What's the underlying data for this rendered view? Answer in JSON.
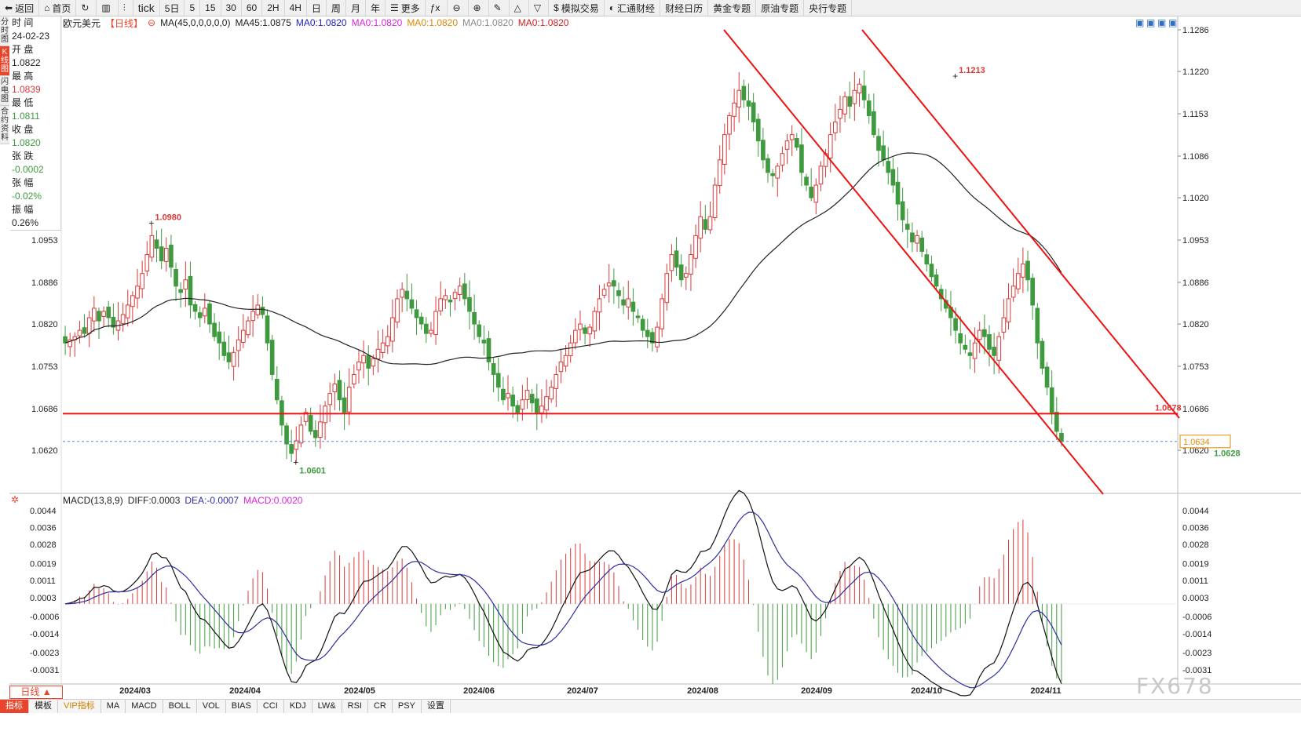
{
  "toolbar": [
    {
      "name": "back",
      "icon": "back-arrow-icon",
      "glyph": "⬅",
      "label": "返回"
    },
    {
      "name": "home",
      "icon": "home-icon",
      "glyph": "⌂",
      "label": "首页"
    },
    {
      "name": "refresh",
      "icon": "refresh-icon",
      "glyph": "↻",
      "label": ""
    },
    {
      "name": "bar-style",
      "icon": "bar-chart-icon",
      "glyph": "▥",
      "label": ""
    },
    {
      "name": "candle-style",
      "icon": "candlestick-icon",
      "glyph": "⫶",
      "label": ""
    },
    {
      "name": "tick",
      "icon": "",
      "glyph": "",
      "label": "tick"
    },
    {
      "name": "5day",
      "icon": "",
      "glyph": "",
      "label": "5日"
    },
    {
      "name": "m5",
      "icon": "",
      "glyph": "",
      "label": "5"
    },
    {
      "name": "m15",
      "icon": "",
      "glyph": "",
      "label": "15"
    },
    {
      "name": "m30",
      "icon": "",
      "glyph": "",
      "label": "30"
    },
    {
      "name": "m60",
      "icon": "",
      "glyph": "",
      "label": "60"
    },
    {
      "name": "h2",
      "icon": "",
      "glyph": "",
      "label": "2H"
    },
    {
      "name": "h4",
      "icon": "",
      "glyph": "",
      "label": "4H"
    },
    {
      "name": "day",
      "icon": "",
      "glyph": "",
      "label": "日"
    },
    {
      "name": "week",
      "icon": "",
      "glyph": "",
      "label": "周"
    },
    {
      "name": "month",
      "icon": "",
      "glyph": "",
      "label": "月"
    },
    {
      "name": "year",
      "icon": "",
      "glyph": "",
      "label": "年"
    },
    {
      "name": "more",
      "icon": "menu-icon",
      "glyph": "☰",
      "label": "更多"
    },
    {
      "name": "formula",
      "icon": "function-icon",
      "glyph": "ƒx",
      "label": ""
    },
    {
      "name": "zoom-out",
      "icon": "zoom-out-icon",
      "glyph": "⊖",
      "label": ""
    },
    {
      "name": "zoom-in",
      "icon": "zoom-in-icon",
      "glyph": "⊕",
      "label": ""
    },
    {
      "name": "draw",
      "icon": "pencil-icon",
      "glyph": "✎",
      "label": ""
    },
    {
      "name": "up",
      "icon": "triangle-up-icon",
      "glyph": "△",
      "label": ""
    },
    {
      "name": "down",
      "icon": "triangle-down-icon",
      "glyph": "▽",
      "label": ""
    },
    {
      "name": "sim-trade",
      "icon": "dollar-icon",
      "glyph": "$",
      "label": "模拟交易"
    },
    {
      "name": "huitong",
      "icon": "globe-icon",
      "glyph": "◐",
      "label": "汇通财经"
    },
    {
      "name": "calendar",
      "icon": "",
      "glyph": "",
      "label": "财经日历"
    },
    {
      "name": "gold",
      "icon": "",
      "glyph": "",
      "label": "黄金专题"
    },
    {
      "name": "oil",
      "icon": "",
      "glyph": "",
      "label": "原油专题"
    },
    {
      "name": "central-bank",
      "icon": "",
      "glyph": "",
      "label": "央行专题"
    }
  ],
  "side_tabs": [
    "分时图",
    "K线图",
    "闪电图",
    "合约资料"
  ],
  "info": {
    "time_label": "时 间",
    "time": "24-02-23",
    "open_label": "开 盘",
    "open": "1.0822",
    "high_label": "最 高",
    "high": "1.0839",
    "low_label": "最 低",
    "low": "1.0811",
    "close_label": "收 盘",
    "close": "1.0820",
    "change_label": "张 跌",
    "change": "-0.0002",
    "pct_label": "张 幅",
    "pct": "-0.02%",
    "amp_label": "振 幅",
    "amp": "0.26%"
  },
  "legend": {
    "symbol": "欧元美元",
    "period": "【日线】",
    "ma_label": "MA(45,0,0,0,0,0)",
    "ma45": "MA45:1.0875",
    "ma0a": "MA0:1.0820",
    "ma0b": "MA0:1.0820",
    "ma0c": "MA0:1.0820",
    "ma0d": "MA0:1.0820",
    "ma0e": "MA0:1.0820"
  },
  "macd_legend": {
    "label": "MACD(13,8,9)",
    "diff": "DIFF:0.0003",
    "dea": "DEA:-0.0007",
    "macd": "MACD:0.0020"
  },
  "colors": {
    "up": "#d93a3a",
    "down": "#3f9a3f",
    "ma": "#222222",
    "dea": "#2e2e9e",
    "trend": "#ee1111",
    "dotted": "#4a8bd6"
  },
  "chart_data": {
    "type": "candlestick",
    "title": "欧元美元 日线",
    "price_ticks": [
      1.1286,
      1.122,
      1.1153,
      1.1086,
      1.102,
      1.0953,
      1.0886,
      1.082,
      1.0753,
      1.0686,
      1.062
    ],
    "left_price_ticks": [
      1.0953,
      1.0886,
      1.082,
      1.0753,
      1.0686,
      1.062
    ],
    "ylim": [
      1.0553,
      1.1286
    ],
    "x_labels": [
      "2024/03",
      "2024/04",
      "2024/05",
      "2024/06",
      "2024/07",
      "2024/08",
      "2024/09",
      "2024/10",
      "2024/11"
    ],
    "annotations": [
      {
        "text": "1.0980",
        "bar": 18,
        "price": 1.098,
        "color": "#d93a3a"
      },
      {
        "text": "1.0601",
        "bar": 48,
        "price": 1.0601,
        "color": "#3f9a3f"
      },
      {
        "text": "1.1213",
        "bar": 185,
        "price": 1.1213,
        "color": "#d93a3a"
      },
      {
        "text": "1.0628",
        "bar": 238,
        "price": 1.0628,
        "color": "#3f9a3f"
      },
      {
        "text": "1.0678",
        "bar": 245,
        "price": 1.0678,
        "color": "#d93a3a"
      }
    ],
    "current_price": "1.0634",
    "horizontal_line": 1.0678,
    "dotted_line": 1.0634,
    "macd_ticks": [
      0.0044,
      0.0036,
      0.0028,
      0.0019,
      0.0011,
      0.0003,
      -0.0006,
      -0.0014,
      -0.0023,
      -0.0031
    ],
    "macd_ylim": [
      -0.0037,
      0.0048
    ],
    "close_series": [
      1.079,
      1.0795,
      1.08,
      1.081,
      1.0805,
      1.083,
      1.0845,
      1.0825,
      1.084,
      1.083,
      1.0815,
      1.0825,
      1.0835,
      1.085,
      1.0865,
      1.088,
      1.09,
      1.093,
      1.096,
      1.094,
      1.092,
      1.094,
      1.091,
      1.088,
      1.087,
      1.089,
      1.085,
      1.084,
      1.083,
      1.0845,
      1.082,
      1.08,
      1.079,
      1.077,
      1.076,
      1.0775,
      1.0795,
      1.081,
      1.0825,
      1.084,
      1.085,
      1.0835,
      1.079,
      1.074,
      1.07,
      1.066,
      1.063,
      1.0615,
      1.0635,
      1.066,
      1.068,
      1.065,
      1.064,
      1.0665,
      1.069,
      1.071,
      1.0725,
      1.07,
      1.068,
      1.072,
      1.074,
      1.076,
      1.077,
      1.075,
      1.0765,
      1.078,
      1.079,
      1.08,
      1.083,
      1.086,
      1.0875,
      1.086,
      1.0845,
      1.083,
      1.082,
      1.0805,
      1.081,
      1.084,
      1.086,
      1.0865,
      1.0855,
      1.087,
      1.088,
      1.086,
      1.084,
      1.082,
      1.08,
      1.079,
      1.076,
      1.074,
      1.072,
      1.07,
      1.071,
      1.069,
      1.068,
      1.07,
      1.0715,
      1.0695,
      1.068,
      1.069,
      1.0705,
      1.072,
      1.074,
      1.076,
      1.077,
      1.079,
      1.081,
      1.082,
      1.0805,
      1.0815,
      1.084,
      1.086,
      1.0875,
      1.0885,
      1.088,
      1.0865,
      1.085,
      1.086,
      1.084,
      1.083,
      1.081,
      1.08,
      1.079,
      1.0815,
      1.086,
      1.09,
      1.093,
      1.091,
      1.089,
      1.09,
      1.093,
      1.096,
      1.099,
      1.097,
      1.099,
      1.104,
      1.108,
      1.112,
      1.115,
      1.117,
      1.119,
      1.1175,
      1.1165,
      1.114,
      1.111,
      1.108,
      1.106,
      1.1055,
      1.107,
      1.109,
      1.111,
      1.112,
      1.11,
      1.106,
      1.104,
      1.102,
      1.104,
      1.107,
      1.109,
      1.112,
      1.114,
      1.116,
      1.118,
      1.1165,
      1.119,
      1.12,
      1.1175,
      1.115,
      1.112,
      1.1095,
      1.108,
      1.106,
      1.104,
      1.101,
      1.0985,
      1.097,
      1.095,
      1.096,
      1.0935,
      1.0915,
      1.0895,
      1.088,
      1.086,
      1.0845,
      1.083,
      1.081,
      1.079,
      1.078,
      1.077,
      1.079,
      1.081,
      1.08,
      1.078,
      1.077,
      1.08,
      1.083,
      1.086,
      1.088,
      1.09,
      1.0915,
      1.089,
      1.085,
      1.079,
      1.075,
      1.072,
      1.068,
      1.065,
      1.0634
    ]
  }
}
